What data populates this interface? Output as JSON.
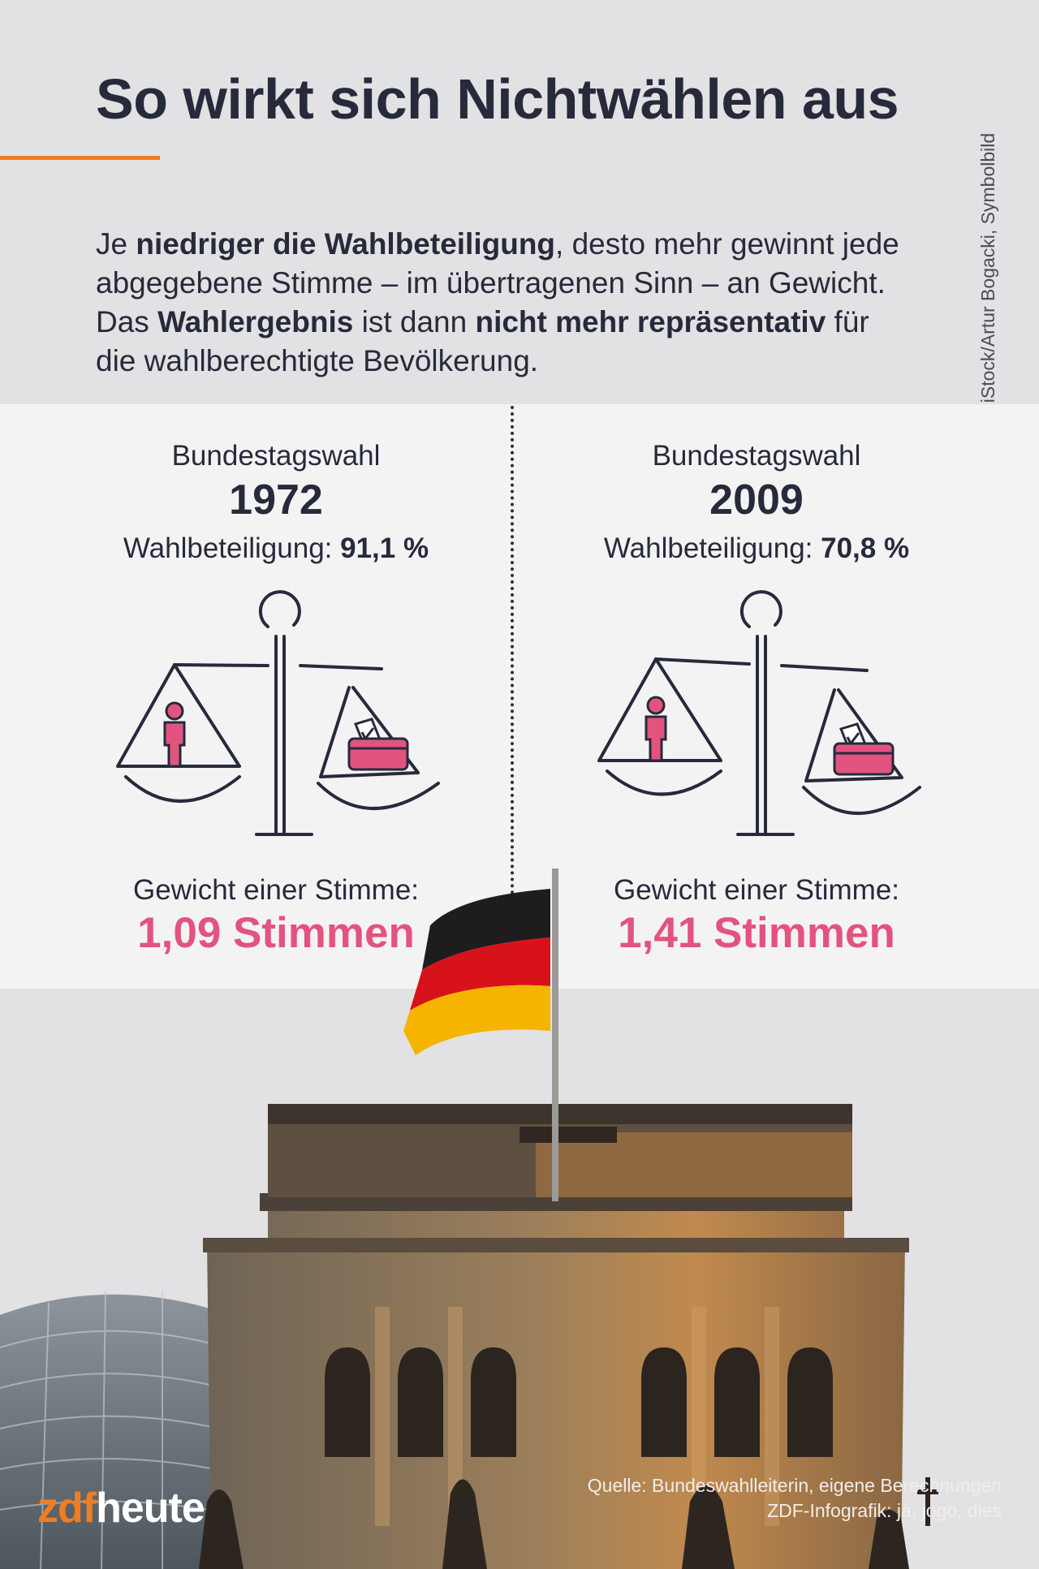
{
  "header": {
    "title": "So wirkt sich Nichtwählen aus",
    "intro": [
      {
        "t": "Je ",
        "b": false
      },
      {
        "t": "niedriger die Wahlbeteiligung",
        "b": true
      },
      {
        "t": ", desto mehr gewinnt jede abgegebene Stimme – im übertragenen Sinn – an Gewicht. Das ",
        "b": false
      },
      {
        "t": "Wahlergebnis",
        "b": true
      },
      {
        "t": " ist dann ",
        "b": false
      },
      {
        "t": "nicht mehr repräsentativ",
        "b": true
      },
      {
        "t": " für die wahlberechtigte Bevölkerung.",
        "b": false
      }
    ],
    "photo_credit": "Foto: iStock/Artur Bogacki, Symbolbild"
  },
  "comparison": [
    {
      "label": "Bundestagswahl",
      "year": "1972",
      "turnout_label": "Wahlbeteiligung:",
      "turnout_value": "91,1 %",
      "weight_label": "Gewicht einer Stimme:",
      "weight_value": "1,09 Stimmen"
    },
    {
      "label": "Bundestagswahl",
      "year": "2009",
      "turnout_label": "Wahlbeteiligung:",
      "turnout_value": "70,8 %",
      "weight_label": "Gewicht einer Stimme:",
      "weight_value": "1,41 Stimmen"
    }
  ],
  "icons": {
    "scale": "balance-scale-icon",
    "person": "person-icon",
    "ballot_box": "ballot-box-icon"
  },
  "colors": {
    "background": "#e2e1e3",
    "panel": "#f4f3f4",
    "accent_orange": "#f07d22",
    "highlight_pink": "#e2547f",
    "text_dark": "#272a3b"
  },
  "footer": {
    "source_line1": "Quelle: Bundeswahlleiterin, eigene Berechnungen",
    "source_line2": "ZDF-Infografik: ja, jogo, dies",
    "logo_zdf": "zdf",
    "logo_heute": "heute"
  }
}
